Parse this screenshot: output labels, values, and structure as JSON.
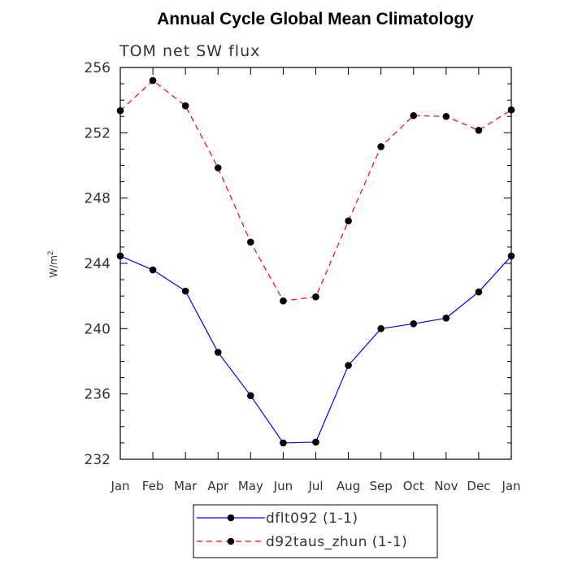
{
  "chart_data": {
    "type": "line",
    "title": "Annual Cycle Global Mean Climatology",
    "subtitle": "TOM net SW flux",
    "ylabel": "W/m",
    "ylabel_sup": "2",
    "xlabel": "",
    "categories": [
      "Jan",
      "Feb",
      "Mar",
      "Apr",
      "May",
      "Jun",
      "Jul",
      "Aug",
      "Sep",
      "Oct",
      "Nov",
      "Dec",
      "Jan"
    ],
    "ylim": [
      232,
      256
    ],
    "yticks": [
      232,
      236,
      240,
      244,
      248,
      252,
      256
    ],
    "grid": false,
    "legend_position": "bottom",
    "series": [
      {
        "name": "dflt092 (1-1)",
        "color": "#0000ff",
        "dash": "solid",
        "marker": "filled-circle",
        "values": [
          244.45,
          243.6,
          242.3,
          238.55,
          235.9,
          233.0,
          233.05,
          237.75,
          240.0,
          240.3,
          240.65,
          242.25,
          244.45
        ]
      },
      {
        "name": "d92taus_zhun (1-1)",
        "color": "#ff0000",
        "dash": "dashed",
        "marker": "filled-circle",
        "values": [
          253.35,
          255.2,
          253.65,
          249.85,
          245.3,
          241.7,
          241.95,
          246.6,
          251.15,
          253.05,
          253.0,
          252.15,
          253.4
        ]
      }
    ]
  }
}
